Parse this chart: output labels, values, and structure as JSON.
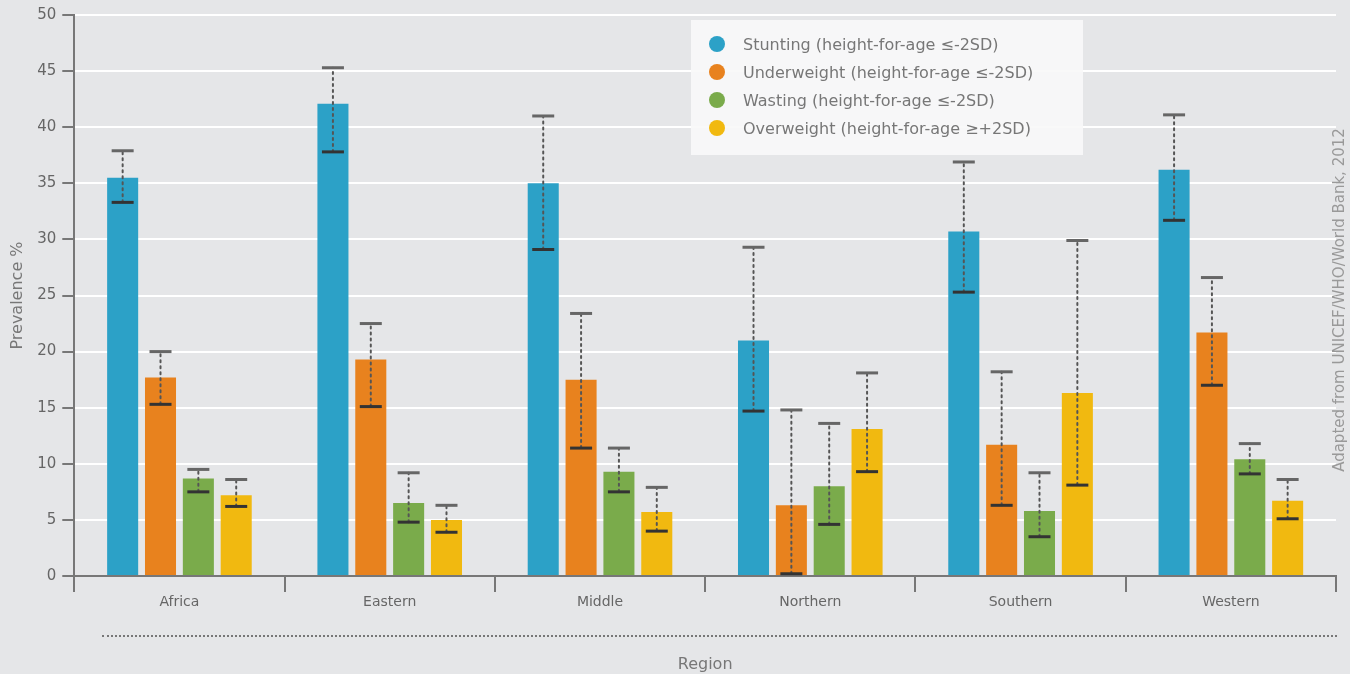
{
  "chart_data": {
    "type": "bar",
    "xlabel": "Region",
    "ylabel": "Prevalence %",
    "categories": [
      "Africa",
      "Eastern",
      "Middle",
      "Northern",
      "Southern",
      "Western"
    ],
    "series": [
      {
        "name": "Stunting (height-for-age ≤-2SD)",
        "color": "#2ca1c7",
        "values": [
          35.5,
          42.1,
          35.0,
          21.0,
          30.7,
          36.2
        ],
        "errors": [
          [
            33.3,
            37.9
          ],
          [
            37.8,
            45.3
          ],
          [
            29.1,
            41.0
          ],
          [
            14.7,
            29.3
          ],
          [
            25.3,
            36.9
          ],
          [
            31.7,
            41.1
          ]
        ]
      },
      {
        "name": "Underweight (height-for-age ≤-2SD)",
        "color": "#e8821e",
        "values": [
          17.7,
          19.3,
          17.5,
          6.3,
          11.7,
          21.7
        ],
        "errors": [
          [
            15.3,
            20.0
          ],
          [
            15.1,
            22.5
          ],
          [
            11.4,
            23.4
          ],
          [
            0.2,
            14.8
          ],
          [
            6.3,
            18.2
          ],
          [
            17.0,
            26.6
          ]
        ]
      },
      {
        "name": "Wasting (height-for-age ≤-2SD)",
        "color": "#7aab4b",
        "values": [
          8.7,
          6.5,
          9.3,
          8.0,
          5.8,
          10.4
        ],
        "errors": [
          [
            7.5,
            9.5
          ],
          [
            4.8,
            9.2
          ],
          [
            7.5,
            11.4
          ],
          [
            4.6,
            13.6
          ],
          [
            3.5,
            9.2
          ],
          [
            9.1,
            11.8
          ]
        ]
      },
      {
        "name": "Overweight (height-for-age ≥+2SD)",
        "color": "#f1b910",
        "values": [
          7.2,
          5.0,
          5.7,
          13.1,
          16.3,
          6.7
        ],
        "errors": [
          [
            6.2,
            8.6
          ],
          [
            3.9,
            6.3
          ],
          [
            4.0,
            7.9
          ],
          [
            9.3,
            18.1
          ],
          [
            8.1,
            29.9
          ],
          [
            5.1,
            8.6
          ]
        ]
      }
    ],
    "ylim": [
      0,
      50
    ],
    "yticks": [
      0,
      5,
      10,
      15,
      20,
      25,
      30,
      35,
      40,
      45,
      50
    ],
    "grid": "y",
    "legend": "top right",
    "annotations": [
      "Adapted from UNICEF/WHO/World Bank, 2012"
    ]
  }
}
